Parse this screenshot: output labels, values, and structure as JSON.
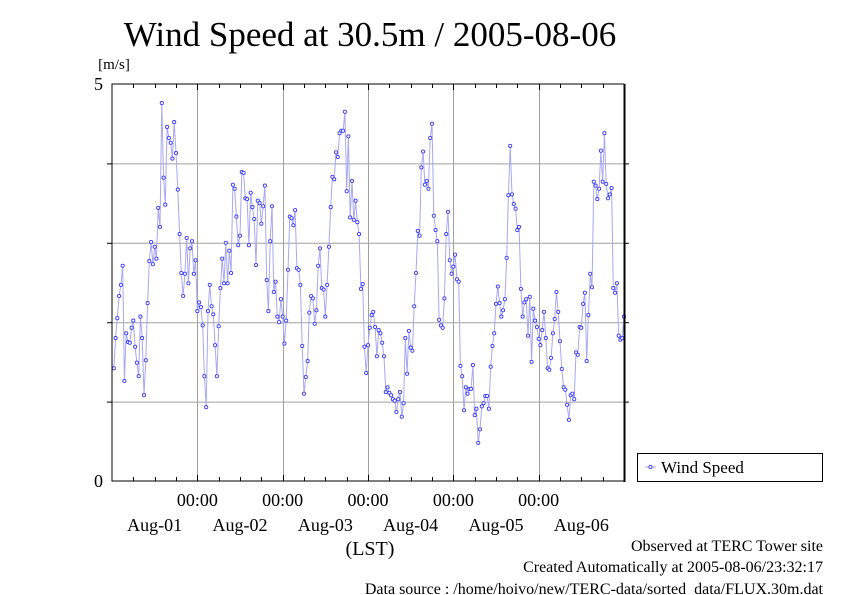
{
  "chart_data": {
    "type": "line",
    "title": "Wind Speed at 30.5m / 2005-08-06",
    "ylabel": "[m/s]",
    "xlabel": "(LST)",
    "ylim": [
      0,
      5
    ],
    "xlim_hours": [
      0,
      144
    ],
    "y_tick_labels": [
      "0",
      "5"
    ],
    "y_grid": [
      1,
      2,
      3,
      4
    ],
    "x_time_labels": [
      "00:00",
      "00:00",
      "00:00",
      "00:00",
      "00:00"
    ],
    "x_date_labels": [
      "Aug-01",
      "Aug-02",
      "Aug-03",
      "Aug-04",
      "Aug-05",
      "Aug-06"
    ],
    "grid": true,
    "legend": {
      "placement": "bottom-right outside",
      "entries": [
        "Wind Speed"
      ]
    },
    "series": [
      {
        "name": "Wind Speed",
        "color": "#3a3aff",
        "line_color": "#a8a8f0",
        "x_start_hours": 0.5,
        "interval_hours": 0.5,
        "values": [
          1.42,
          1.8,
          2.05,
          2.33,
          2.47,
          2.71,
          1.26,
          1.86,
          1.75,
          1.74,
          1.93,
          2.02,
          1.69,
          1.49,
          1.32,
          2.07,
          1.8,
          1.08,
          1.52,
          2.24,
          2.77,
          3.01,
          2.73,
          2.95,
          2.8,
          3.44,
          3.2,
          4.76,
          3.82,
          3.48,
          4.46,
          4.32,
          4.26,
          4.06,
          4.52,
          4.13,
          3.67,
          3.11,
          2.62,
          2.33,
          2.61,
          3.06,
          2.49,
          2.93,
          3.02,
          2.61,
          2.78,
          2.14,
          2.25,
          2.19,
          1.96,
          1.32,
          0.93,
          2.14,
          2.47,
          2.2,
          2.1,
          1.71,
          1.32,
          1.95,
          2.43,
          2.8,
          2.49,
          3.0,
          2.49,
          2.9,
          2.62,
          3.73,
          3.68,
          3.33,
          2.97,
          3.09,
          3.89,
          3.88,
          3.56,
          3.55,
          2.97,
          3.63,
          3.45,
          3.3,
          2.72,
          3.53,
          3.5,
          3.24,
          3.46,
          3.72,
          2.53,
          2.14,
          3.02,
          3.46,
          2.38,
          2.51,
          2.07,
          2.0,
          2.29,
          2.07,
          1.73,
          2.02,
          2.66,
          3.33,
          3.31,
          3.22,
          3.41,
          2.68,
          2.66,
          2.47,
          1.7,
          1.1,
          1.31,
          1.51,
          2.12,
          2.33,
          2.3,
          1.98,
          2.15,
          2.71,
          2.93,
          2.43,
          2.41,
          2.07,
          2.47,
          2.95,
          3.45,
          3.83,
          3.8,
          4.14,
          4.08,
          4.38,
          4.41,
          4.41,
          4.65,
          3.65,
          4.34,
          3.32,
          3.78,
          3.29,
          3.53,
          3.26,
          3.11,
          2.42,
          2.48,
          1.69,
          1.36,
          1.71,
          1.93,
          2.09,
          2.13,
          1.94,
          1.57,
          1.9,
          1.86,
          1.74,
          1.57,
          1.12,
          1.18,
          1.11,
          1.08,
          1.03,
          1.01,
          0.87,
          1.03,
          1.12,
          0.81,
          0.98,
          1.8,
          1.35,
          1.89,
          1.68,
          1.64,
          2.2,
          2.62,
          3.15,
          3.09,
          3.95,
          4.15,
          3.73,
          3.78,
          3.68,
          4.32,
          4.5,
          3.34,
          3.16,
          3.02,
          2.03,
          1.96,
          1.93,
          2.3,
          3.11,
          3.39,
          2.78,
          2.61,
          2.7,
          2.85,
          2.54,
          2.51,
          1.45,
          1.32,
          0.89,
          1.18,
          1.1,
          1.16,
          1.16,
          1.46,
          0.83,
          0.91,
          0.48,
          0.65,
          0.94,
          0.98,
          1.07,
          1.07,
          0.91,
          1.44,
          1.7,
          1.86,
          2.23,
          2.45,
          2.24,
          2.07,
          2.15,
          2.29,
          2.81,
          3.6,
          4.22,
          3.61,
          3.49,
          3.43,
          3.16,
          3.2,
          2.42,
          2.07,
          2.25,
          2.29,
          1.83,
          2.32,
          1.5,
          2.17,
          2.02,
          1.94,
          1.79,
          1.71,
          1.9,
          2.13,
          1.8,
          1.42,
          1.4,
          1.55,
          1.86,
          2.04,
          2.38,
          2.13,
          1.76,
          1.41,
          1.18,
          1.15,
          0.96,
          0.77,
          1.08,
          1.1,
          1.03,
          1.62,
          1.59,
          1.94,
          1.93,
          2.23,
          2.37,
          1.51,
          2.09,
          2.61,
          2.44,
          3.77,
          3.72,
          3.55,
          3.68,
          4.16,
          3.77,
          4.38,
          3.74,
          3.56,
          3.61,
          3.69,
          2.43,
          2.37,
          2.49,
          1.83,
          1.78,
          1.8,
          2.07
        ]
      }
    ],
    "annotations": {
      "site": "Observed at TERC Tower site",
      "created": "Created Automatically at 2005-08-06/23:32:17",
      "source": "Data source : /home/hoivo/new/TERC-data/sorted  data/FLUX.30m.dat"
    }
  }
}
